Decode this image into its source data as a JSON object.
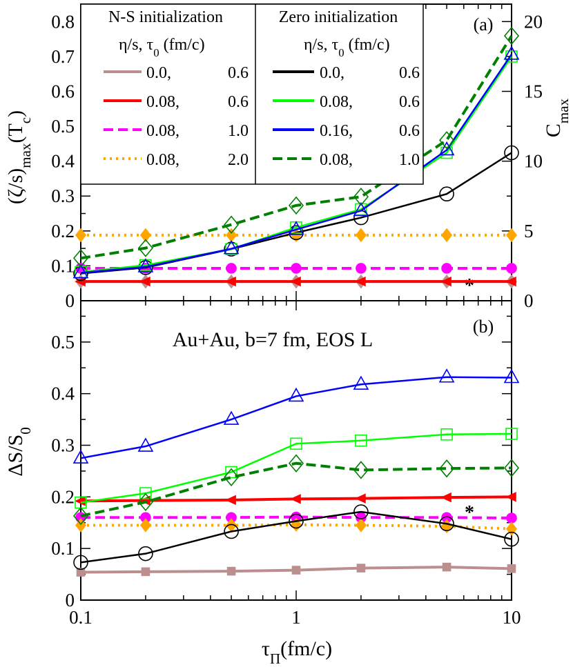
{
  "chart_data": {
    "type": "line",
    "x_ticks": [
      0.1,
      1,
      10
    ],
    "x_tick_labels": [
      "0.1",
      "1",
      "10"
    ],
    "xlabel": "τ_Π(fm/c)",
    "xlim": [
      0.1,
      10
    ],
    "x": [
      0.1,
      0.2,
      0.5,
      1,
      2,
      5,
      10
    ],
    "panels": [
      {
        "id": "a",
        "tag": "(a)",
        "ylabel_left": "(ζ/s)_max(T_c)",
        "ylim_left": [
          0,
          0.85
        ],
        "y_ticks_left": [
          0,
          0.1,
          0.2,
          0.3,
          0.4,
          0.5,
          0.6,
          0.7,
          0.8
        ],
        "y_tick_labels_left": [
          "0",
          "0.1",
          "0.2",
          "0.3",
          "0.4",
          "0.5",
          "0.6",
          "0.7",
          "0.8"
        ],
        "ylabel_right": "C_max",
        "ylim_right": [
          0,
          21.25
        ],
        "y_ticks_right": [
          0,
          5,
          10,
          15,
          20
        ],
        "y_tick_labels_right": [
          "0",
          "5",
          "10",
          "15",
          "20"
        ],
        "annotation": "*",
        "series": [
          {
            "name": "0.0, 0.6",
            "group": "N-S",
            "color": "#bc8f8f",
            "style": "solid",
            "marker": "diamond-filled",
            "values": [
              0.055,
              0.055,
              0.055,
              0.055,
              0.055,
              0.055,
              0.055
            ]
          },
          {
            "name": "0.08, 0.6",
            "group": "N-S",
            "color": "#ff0000",
            "style": "solid",
            "marker": "triangle-left-filled",
            "values": [
              0.055,
              0.055,
              0.055,
              0.055,
              0.055,
              0.055,
              0.055
            ]
          },
          {
            "name": "0.08, 1.0",
            "group": "N-S",
            "color": "#ff00ff",
            "style": "dashed",
            "marker": "circle-filled",
            "values": [
              0.093,
              0.093,
              0.093,
              0.093,
              0.093,
              0.093,
              0.093
            ]
          },
          {
            "name": "0.08, 2.0",
            "group": "N-S",
            "color": "#ffa500",
            "style": "dotted",
            "marker": "diamond-filled",
            "values": [
              0.188,
              0.188,
              0.188,
              0.188,
              0.188,
              0.188,
              0.188
            ]
          },
          {
            "name": "0.0, 0.6",
            "group": "Zero",
            "color": "#000000",
            "style": "solid",
            "marker": "circle",
            "values": [
              0.078,
              0.095,
              0.148,
              0.195,
              0.238,
              0.306,
              0.424
            ]
          },
          {
            "name": "0.08, 0.6",
            "group": "Zero",
            "color": "#00ff00",
            "style": "solid",
            "marker": "square",
            "values": [
              0.082,
              0.102,
              0.148,
              0.21,
              0.262,
              0.424,
              0.7
            ]
          },
          {
            "name": "0.16, 0.6",
            "group": "Zero",
            "color": "#0000ff",
            "style": "solid",
            "marker": "triangle",
            "values": [
              0.08,
              0.097,
              0.149,
              0.204,
              0.258,
              0.432,
              0.706
            ]
          },
          {
            "name": "0.08, 1.0",
            "group": "Zero",
            "color": "#008000",
            "style": "dashed",
            "marker": "diamond",
            "values": [
              0.122,
              0.151,
              0.218,
              0.273,
              0.298,
              0.46,
              0.759
            ]
          }
        ]
      },
      {
        "id": "b",
        "tag": "(b)",
        "title": "Au+Au, b=7 fm, EOS L",
        "ylabel_left": "ΔS/S_0",
        "ylim_left": [
          0,
          0.58
        ],
        "y_ticks_left": [
          0,
          0.1,
          0.2,
          0.3,
          0.4,
          0.5
        ],
        "y_tick_labels_left": [
          "0",
          "0.1",
          "0.2",
          "0.3",
          "0.4",
          "0.5"
        ],
        "annotation": "*",
        "series": [
          {
            "name": "0.0, 0.6",
            "group": "N-S",
            "color": "#bc8f8f",
            "style": "solid",
            "marker": "square-filled",
            "values": [
              0.054,
              0.055,
              0.056,
              0.058,
              0.062,
              0.064,
              0.061
            ]
          },
          {
            "name": "0.08, 0.6",
            "group": "N-S",
            "color": "#ff0000",
            "style": "solid",
            "marker": "triangle-left-filled",
            "values": [
              0.192,
              0.193,
              0.194,
              0.196,
              0.197,
              0.199,
              0.2
            ]
          },
          {
            "name": "0.08, 1.0",
            "group": "N-S",
            "color": "#ff00ff",
            "style": "dashed",
            "marker": "circle-filled",
            "values": [
              0.16,
              0.16,
              0.16,
              0.161,
              0.16,
              0.16,
              0.159
            ]
          },
          {
            "name": "0.08, 2.0",
            "group": "N-S",
            "color": "#ffa500",
            "style": "dotted",
            "marker": "diamond-filled",
            "values": [
              0.145,
              0.145,
              0.145,
              0.146,
              0.145,
              0.143,
              0.138
            ]
          },
          {
            "name": "0.0, 0.6",
            "group": "Zero",
            "color": "#000000",
            "style": "solid",
            "marker": "circle",
            "values": [
              0.073,
              0.09,
              0.133,
              0.153,
              0.171,
              0.148,
              0.118
            ]
          },
          {
            "name": "0.08, 0.6",
            "group": "Zero",
            "color": "#00ff00",
            "style": "solid",
            "marker": "square",
            "values": [
              0.189,
              0.207,
              0.248,
              0.303,
              0.309,
              0.321,
              0.322
            ]
          },
          {
            "name": "0.16, 0.6",
            "group": "Zero",
            "color": "#0000ff",
            "style": "solid",
            "marker": "triangle",
            "values": [
              0.275,
              0.298,
              0.35,
              0.395,
              0.418,
              0.432,
              0.431
            ]
          },
          {
            "name": "0.08, 1.0",
            "group": "Zero",
            "color": "#008000",
            "style": "dashed",
            "marker": "diamond",
            "values": [
              0.163,
              0.19,
              0.238,
              0.265,
              0.252,
              0.255,
              0.256
            ]
          }
        ]
      }
    ],
    "legend": {
      "placement": "top-left",
      "groups": [
        {
          "title": "N-S initialization",
          "subtitle": "η/s, τ_0 (fm/c)",
          "entries": [
            {
              "eta_s": "0.0,",
              "tau0": "0.6",
              "color": "#bc8f8f",
              "style": "solid"
            },
            {
              "eta_s": "0.08,",
              "tau0": "0.6",
              "color": "#ff0000",
              "style": "solid"
            },
            {
              "eta_s": "0.08,",
              "tau0": "1.0",
              "color": "#ff00ff",
              "style": "dashed"
            },
            {
              "eta_s": "0.08,",
              "tau0": "2.0",
              "color": "#ffa500",
              "style": "dotted"
            }
          ]
        },
        {
          "title": "Zero initialization",
          "subtitle": "η/s, τ_0 (fm/c)",
          "entries": [
            {
              "eta_s": "0.0,",
              "tau0": "0.6",
              "color": "#000000",
              "style": "solid"
            },
            {
              "eta_s": "0.08,",
              "tau0": "0.6",
              "color": "#00ff00",
              "style": "solid"
            },
            {
              "eta_s": "0.16,",
              "tau0": "0.6",
              "color": "#0000ff",
              "style": "solid"
            },
            {
              "eta_s": "0.08,",
              "tau0": "1.0",
              "color": "#008000",
              "style": "dashed"
            }
          ]
        }
      ]
    }
  }
}
